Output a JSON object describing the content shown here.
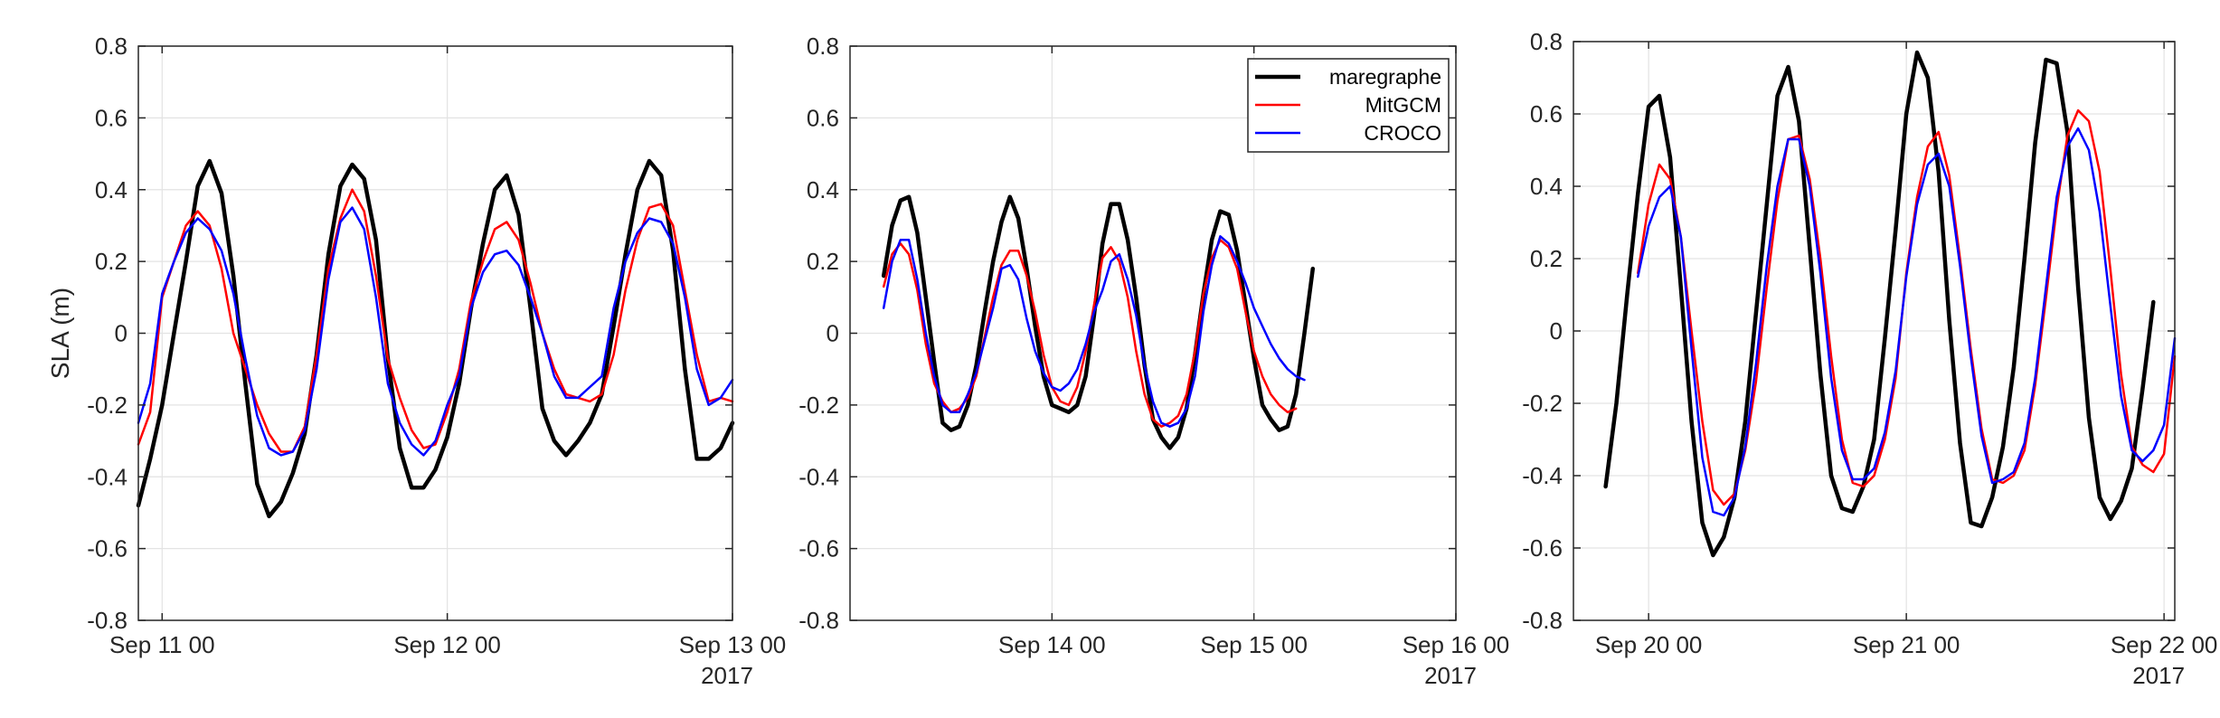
{
  "chart_data": [
    {
      "type": "line",
      "ylabel": "SLA (m)",
      "xlabel": "",
      "ylim": [
        -0.8,
        0.8
      ],
      "yticks": [
        "0.8",
        "0.6",
        "0.4",
        "0.2",
        "0",
        "-0.2",
        "-0.4",
        "-0.6",
        "-0.8"
      ],
      "xlim": [
        "2017-09-10T22:00",
        "2017-09-13T00:00"
      ],
      "xticks": [
        {
          "t": "2017-09-11T00:00",
          "label": "Sep 11 00"
        },
        {
          "t": "2017-09-12T00:00",
          "label": "Sep 12 00"
        },
        {
          "t": "2017-09-13T00:00",
          "label": "Sep 13 00"
        }
      ],
      "year_label": "2017",
      "grid": true,
      "legend": null,
      "series": [
        {
          "name": "maregraphe",
          "color": "#000000",
          "width": 4.5,
          "start": "2017-09-10T22:00",
          "values": [
            -0.48,
            -0.35,
            -0.2,
            0.0,
            0.2,
            0.41,
            0.48,
            0.39,
            0.16,
            -0.14,
            -0.42,
            -0.51,
            -0.47,
            -0.39,
            -0.28,
            -0.06,
            0.22,
            0.41,
            0.47,
            0.43,
            0.26,
            -0.07,
            -0.32,
            -0.43,
            -0.43,
            -0.38,
            -0.29,
            -0.14,
            0.07,
            0.25,
            0.4,
            0.44,
            0.33,
            0.07,
            -0.21,
            -0.3,
            -0.34,
            -0.3,
            -0.25,
            -0.17,
            0.02,
            0.22,
            0.4,
            0.48,
            0.44,
            0.23,
            -0.1,
            -0.35,
            -0.35,
            -0.32,
            -0.25
          ]
        },
        {
          "name": "MitGCM",
          "color": "#ff0000",
          "width": 2.5,
          "start": "2017-09-10T22:00",
          "values": [
            -0.31,
            -0.22,
            0.1,
            0.2,
            0.3,
            0.34,
            0.3,
            0.18,
            0.0,
            -0.1,
            -0.2,
            -0.28,
            -0.33,
            -0.33,
            -0.26,
            -0.06,
            0.18,
            0.32,
            0.4,
            0.34,
            0.16,
            -0.07,
            -0.18,
            -0.27,
            -0.32,
            -0.31,
            -0.22,
            -0.1,
            0.09,
            0.2,
            0.29,
            0.31,
            0.26,
            0.14,
            0.0,
            -0.1,
            -0.17,
            -0.18,
            -0.19,
            -0.17,
            -0.06,
            0.12,
            0.26,
            0.35,
            0.36,
            0.3,
            0.12,
            -0.06,
            -0.19,
            -0.18,
            -0.19
          ]
        },
        {
          "name": "CROCO",
          "color": "#0000ff",
          "width": 2.5,
          "start": "2017-09-10T22:00",
          "values": [
            -0.25,
            -0.14,
            0.11,
            0.2,
            0.28,
            0.32,
            0.29,
            0.23,
            0.11,
            -0.07,
            -0.23,
            -0.32,
            -0.34,
            -0.33,
            -0.27,
            -0.1,
            0.15,
            0.31,
            0.35,
            0.29,
            0.1,
            -0.14,
            -0.25,
            -0.31,
            -0.34,
            -0.3,
            -0.2,
            -0.12,
            0.07,
            0.17,
            0.22,
            0.23,
            0.19,
            0.1,
            0.0,
            -0.12,
            -0.18,
            -0.18,
            -0.15,
            -0.12,
            0.07,
            0.2,
            0.28,
            0.32,
            0.31,
            0.25,
            0.1,
            -0.1,
            -0.2,
            -0.18,
            -0.13
          ]
        }
      ]
    },
    {
      "type": "line",
      "ylabel": "",
      "xlabel": "",
      "ylim": [
        -0.8,
        0.8
      ],
      "yticks": [
        "0.8",
        "0.6",
        "0.4",
        "0.2",
        "0",
        "-0.2",
        "-0.4",
        "-0.6",
        "-0.8"
      ],
      "xlim": [
        "2017-09-13T00:00",
        "2017-09-16T00:00"
      ],
      "xticks": [
        {
          "t": "2017-09-14T00:00",
          "label": "Sep 14 00"
        },
        {
          "t": "2017-09-15T00:00",
          "label": "Sep 15 00"
        },
        {
          "t": "2017-09-16T00:00",
          "label": "Sep 16 00"
        }
      ],
      "year_label": "2017",
      "grid": true,
      "legend": {
        "position": "top-right",
        "entries": [
          "maregraphe",
          "MitGCM",
          "CROCO"
        ]
      },
      "series": [
        {
          "name": "maregraphe",
          "color": "#000000",
          "width": 4.5,
          "start": "2017-09-13T04:00",
          "values": [
            0.16,
            0.3,
            0.37,
            0.38,
            0.28,
            0.1,
            -0.08,
            -0.25,
            -0.27,
            -0.26,
            -0.2,
            -0.09,
            0.06,
            0.2,
            0.31,
            0.38,
            0.32,
            0.18,
            0.02,
            -0.12,
            -0.2,
            -0.21,
            -0.22,
            -0.2,
            -0.12,
            0.05,
            0.25,
            0.36,
            0.36,
            0.26,
            0.1,
            -0.09,
            -0.24,
            -0.29,
            -0.32,
            -0.29,
            -0.21,
            -0.06,
            0.11,
            0.26,
            0.34,
            0.33,
            0.23,
            0.08,
            -0.07,
            -0.2,
            -0.24,
            -0.27,
            -0.26,
            -0.17,
            0.0,
            0.18
          ]
        },
        {
          "name": "MitGCM",
          "color": "#ff0000",
          "width": 2.5,
          "start": "2017-09-13T04:00",
          "values": [
            0.13,
            0.22,
            0.25,
            0.22,
            0.12,
            -0.03,
            -0.14,
            -0.19,
            -0.22,
            -0.21,
            -0.18,
            -0.12,
            -0.01,
            0.1,
            0.19,
            0.23,
            0.23,
            0.16,
            0.06,
            -0.06,
            -0.15,
            -0.19,
            -0.2,
            -0.15,
            -0.05,
            0.08,
            0.21,
            0.24,
            0.2,
            0.1,
            -0.05,
            -0.17,
            -0.24,
            -0.26,
            -0.25,
            -0.23,
            -0.17,
            -0.05,
            0.11,
            0.21,
            0.26,
            0.24,
            0.18,
            0.06,
            -0.05,
            -0.12,
            -0.17,
            -0.2,
            -0.22,
            -0.21
          ]
        },
        {
          "name": "CROCO",
          "color": "#0000ff",
          "width": 2.5,
          "start": "2017-09-13T04:00",
          "values": [
            0.07,
            0.2,
            0.26,
            0.26,
            0.15,
            0.0,
            -0.12,
            -0.2,
            -0.22,
            -0.22,
            -0.17,
            -0.11,
            -0.02,
            0.07,
            0.18,
            0.19,
            0.15,
            0.04,
            -0.05,
            -0.11,
            -0.15,
            -0.16,
            -0.14,
            -0.1,
            -0.03,
            0.06,
            0.12,
            0.2,
            0.22,
            0.15,
            0.05,
            -0.09,
            -0.19,
            -0.25,
            -0.26,
            -0.25,
            -0.21,
            -0.12,
            0.06,
            0.19,
            0.27,
            0.25,
            0.2,
            0.14,
            0.07,
            0.02,
            -0.03,
            -0.07,
            -0.1,
            -0.12,
            -0.13
          ]
        }
      ]
    },
    {
      "type": "line",
      "ylabel": "",
      "xlabel": "",
      "ylim": [
        -0.8,
        0.8
      ],
      "yticks": [
        "0.8",
        "0.6",
        "0.4",
        "0.2",
        "0",
        "-0.2",
        "-0.4",
        "-0.6",
        "-0.8"
      ],
      "xlim": [
        "2017-09-19T17:00",
        "2017-09-22T01:00"
      ],
      "xticks": [
        {
          "t": "2017-09-20T00:00",
          "label": "Sep 20 00"
        },
        {
          "t": "2017-09-21T00:00",
          "label": "Sep 21 00"
        },
        {
          "t": "2017-09-22T00:00",
          "label": "Sep 22 00"
        }
      ],
      "year_label": "2017",
      "grid": true,
      "legend": null,
      "series": [
        {
          "name": "maregraphe",
          "color": "#000000",
          "width": 4.5,
          "start": "2017-09-19T20:00",
          "values": [
            -0.43,
            -0.2,
            0.1,
            0.38,
            0.62,
            0.65,
            0.48,
            0.12,
            -0.25,
            -0.53,
            -0.62,
            -0.57,
            -0.46,
            -0.25,
            0.05,
            0.35,
            0.65,
            0.73,
            0.58,
            0.23,
            -0.12,
            -0.4,
            -0.49,
            -0.5,
            -0.43,
            -0.3,
            -0.02,
            0.28,
            0.6,
            0.77,
            0.7,
            0.44,
            0.03,
            -0.31,
            -0.53,
            -0.54,
            -0.46,
            -0.32,
            -0.1,
            0.2,
            0.52,
            0.75,
            0.74,
            0.55,
            0.12,
            -0.24,
            -0.46,
            -0.52,
            -0.47,
            -0.38,
            -0.16,
            0.08
          ]
        },
        {
          "name": "MitGCM",
          "color": "#ff0000",
          "width": 2.5,
          "start": "2017-09-19T23:00",
          "values": [
            0.16,
            0.35,
            0.46,
            0.42,
            0.26,
            0.0,
            -0.25,
            -0.44,
            -0.48,
            -0.45,
            -0.33,
            -0.14,
            0.12,
            0.36,
            0.53,
            0.54,
            0.42,
            0.2,
            -0.07,
            -0.3,
            -0.42,
            -0.43,
            -0.4,
            -0.3,
            -0.13,
            0.16,
            0.37,
            0.51,
            0.55,
            0.43,
            0.2,
            -0.05,
            -0.27,
            -0.41,
            -0.42,
            -0.4,
            -0.33,
            -0.15,
            0.09,
            0.34,
            0.54,
            0.61,
            0.58,
            0.44,
            0.17,
            -0.12,
            -0.32,
            -0.37,
            -0.39,
            -0.34,
            -0.07
          ]
        },
        {
          "name": "CROCO",
          "color": "#0000ff",
          "width": 2.5,
          "start": "2017-09-19T23:00",
          "values": [
            0.15,
            0.29,
            0.37,
            0.4,
            0.26,
            -0.05,
            -0.35,
            -0.5,
            -0.51,
            -0.46,
            -0.32,
            -0.09,
            0.18,
            0.4,
            0.53,
            0.53,
            0.4,
            0.16,
            -0.13,
            -0.33,
            -0.41,
            -0.41,
            -0.38,
            -0.28,
            -0.11,
            0.15,
            0.35,
            0.46,
            0.49,
            0.4,
            0.18,
            -0.07,
            -0.29,
            -0.42,
            -0.41,
            -0.39,
            -0.31,
            -0.13,
            0.12,
            0.37,
            0.51,
            0.56,
            0.5,
            0.33,
            0.07,
            -0.18,
            -0.33,
            -0.36,
            -0.33,
            -0.26,
            -0.02
          ]
        }
      ]
    }
  ]
}
